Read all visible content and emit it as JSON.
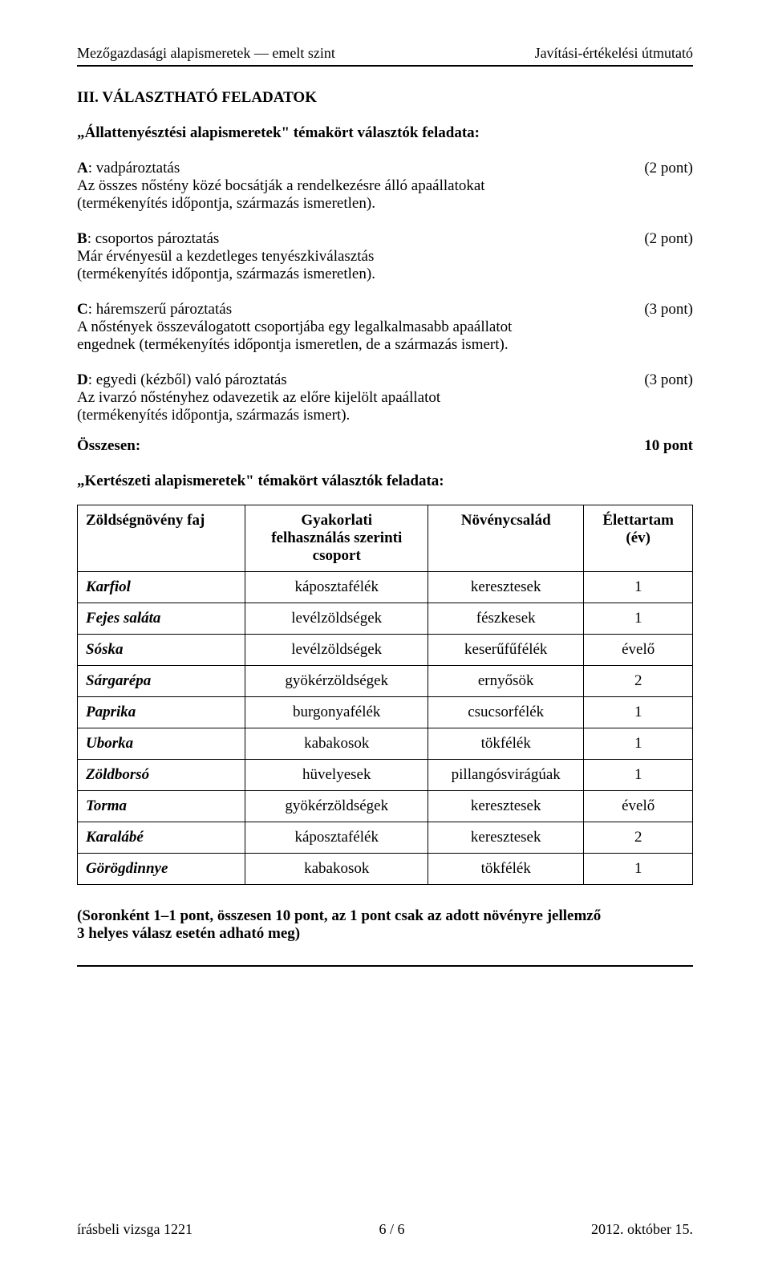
{
  "header": {
    "left": "Mezőgazdasági alapismeretek — emelt szint",
    "right": "Javítási-értékelési útmutató"
  },
  "section_title": "III. VÁLASZTHATÓ FELADATOK",
  "subtitle_1": "„Állattenyésztési alapismeretek\" témakört választók feladata:",
  "blocks": {
    "a": {
      "label": "A",
      "name": ": vadpároztatás",
      "points": "(2 pont)",
      "line2": "Az összes nőstény közé bocsátják a rendelkezésre álló apaállatokat",
      "line3": "(termékenyítés időpontja, származás ismeretlen)."
    },
    "b": {
      "label": "B",
      "name": ": csoportos pároztatás",
      "points": "(2 pont)",
      "line2": "Már érvényesül a kezdetleges tenyészkiválasztás",
      "line3": "(termékenyítés időpontja, származás ismeretlen)."
    },
    "c": {
      "label": "C",
      "name": ": háremszerű pároztatás",
      "points": "(3 pont)",
      "line2": "A nőstények összeválogatott csoportjába egy legalkalmasabb apaállatot",
      "line3": "engednek (termékenyítés időpontja ismeretlen, de a származás ismert)."
    },
    "d": {
      "label": "D",
      "name": ": egyedi (kézből) való pároztatás",
      "points": "(3 pont)",
      "line2": "Az ivarzó nőstényhez odavezetik az előre kijelölt apaállatot",
      "line3": "(termékenyítés időpontja, származás ismert)."
    }
  },
  "totals": {
    "label": "Összesen:",
    "value": "10 pont"
  },
  "subtitle_2": "„Kertészeti alapismeretek\" témakört választók feladata:",
  "table": {
    "headers": {
      "c1": "Zöldségnövény faj",
      "c2a": "Gyakorlati",
      "c2b": "felhasználás szerinti",
      "c2c": "csoport",
      "c3": "Növénycsalád",
      "c4a": "Élettartam",
      "c4b": "(év)"
    },
    "rows": [
      {
        "c1": "Karfiol",
        "c2": "káposztafélék",
        "c3": "keresztesek",
        "c4": "1"
      },
      {
        "c1": "Fejes saláta",
        "c2": "levélzöldségek",
        "c3": "fészkesek",
        "c4": "1"
      },
      {
        "c1": "Sóska",
        "c2": "levélzöldségek",
        "c3": "keserűfűfélék",
        "c4": "évelő"
      },
      {
        "c1": "Sárgarépa",
        "c2": "gyökérzöldségek",
        "c3": "ernyősök",
        "c4": "2"
      },
      {
        "c1": "Paprika",
        "c2": "burgonyafélék",
        "c3": "csucsorfélék",
        "c4": "1"
      },
      {
        "c1": "Uborka",
        "c2": "kabakosok",
        "c3": "tökfélék",
        "c4": "1"
      },
      {
        "c1": "Zöldborsó",
        "c2": "hüvelyesek",
        "c3": "pillangósvirágúak",
        "c4": "1"
      },
      {
        "c1": "Torma",
        "c2": "gyökérzöldségek",
        "c3": "keresztesek",
        "c4": "évelő"
      },
      {
        "c1": "Karalábé",
        "c2": "káposztafélék",
        "c3": "keresztesek",
        "c4": "2"
      },
      {
        "c1": "Görögdinnye",
        "c2": "kabakosok",
        "c3": "tökfélék",
        "c4": "1"
      }
    ]
  },
  "note_line1": "(Soronként 1–1 pont, összesen 10 pont, az 1 pont csak az adott növényre jellemző",
  "note_line2": "3 helyes válasz esetén adható meg)",
  "footer": {
    "left": "írásbeli vizsga 1221",
    "center": "6 / 6",
    "right": "2012. október 15."
  }
}
